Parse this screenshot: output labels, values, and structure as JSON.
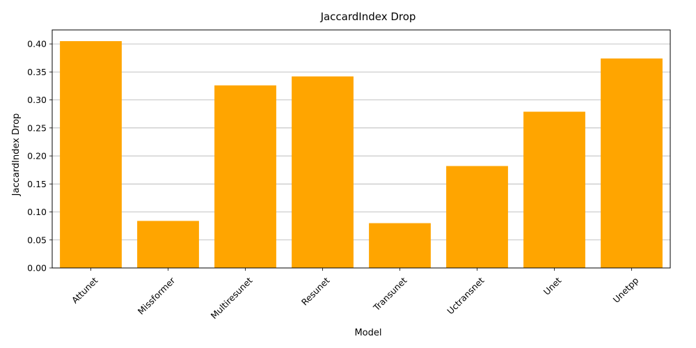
{
  "chart_data": {
    "type": "bar",
    "title": "JaccardIndex Drop",
    "xlabel": "Model",
    "ylabel": "JaccardIndex Drop",
    "categories": [
      "Attunet",
      "Missformer",
      "Multiresunet",
      "Resunet",
      "Transunet",
      "Uctransnet",
      "Unet",
      "Unetpp"
    ],
    "values": [
      0.405,
      0.084,
      0.326,
      0.342,
      0.08,
      0.182,
      0.279,
      0.374
    ],
    "ylim": [
      0,
      0.425
    ],
    "yticks": [
      "0.00",
      "0.05",
      "0.10",
      "0.15",
      "0.20",
      "0.25",
      "0.30",
      "0.35",
      "0.40"
    ],
    "grid": "horizontal",
    "bar_color": "#ffa500",
    "xtick_rotation": 45
  }
}
